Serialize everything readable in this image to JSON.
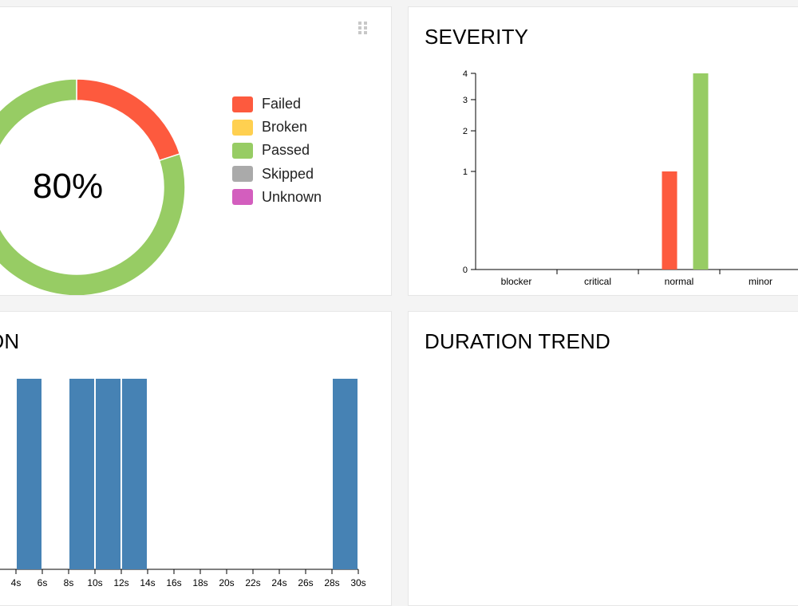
{
  "status_widget": {
    "percent_label": "80%",
    "legend": [
      {
        "label": "Failed",
        "color": "#fd5a3e"
      },
      {
        "label": "Broken",
        "color": "#ffd050"
      },
      {
        "label": "Passed",
        "color": "#97cc64"
      },
      {
        "label": "Skipped",
        "color": "#aaaaaa"
      },
      {
        "label": "Unknown",
        "color": "#d35ebe"
      }
    ]
  },
  "severity_widget": {
    "title": "SEVERITY"
  },
  "duration_widget": {
    "title_fragment": "ON"
  },
  "trend_widget": {
    "title": "DURATION TREND"
  },
  "chart_data": [
    {
      "type": "pie",
      "variant": "donut",
      "center_label": "80%",
      "slices": [
        {
          "name": "Failed",
          "value": 1,
          "color": "#fd5a3e"
        },
        {
          "name": "Broken",
          "value": 0,
          "color": "#ffd050"
        },
        {
          "name": "Passed",
          "value": 4,
          "color": "#97cc64"
        },
        {
          "name": "Skipped",
          "value": 0,
          "color": "#aaaaaa"
        },
        {
          "name": "Unknown",
          "value": 0,
          "color": "#d35ebe"
        }
      ]
    },
    {
      "type": "bar",
      "title": "SEVERITY",
      "scale": "sqrt",
      "categories": [
        "blocker",
        "critical",
        "normal",
        "minor"
      ],
      "series": [
        {
          "name": "failed",
          "color": "#fd5a3e",
          "values": [
            0,
            0,
            1,
            0
          ]
        },
        {
          "name": "passed",
          "color": "#97cc64",
          "values": [
            0,
            0,
            4,
            0
          ]
        }
      ],
      "yticks": [
        "0",
        "1",
        "2",
        "3",
        "4"
      ],
      "ylim": [
        0,
        4
      ]
    },
    {
      "type": "bar",
      "title": "ON",
      "variant": "histogram",
      "color": "#4682b4",
      "xticks": [
        "4s",
        "6s",
        "8s",
        "10s",
        "12s",
        "14s",
        "16s",
        "18s",
        "20s",
        "22s",
        "24s",
        "26s",
        "28s",
        "30s"
      ],
      "bins": [
        {
          "from": 4,
          "to": 6,
          "count": 1
        },
        {
          "from": 8,
          "to": 10,
          "count": 1
        },
        {
          "from": 10,
          "to": 12,
          "count": 1
        },
        {
          "from": 12,
          "to": 14,
          "count": 1
        },
        {
          "from": 28,
          "to": 30,
          "count": 1
        }
      ],
      "xlim": [
        4,
        30
      ]
    }
  ]
}
